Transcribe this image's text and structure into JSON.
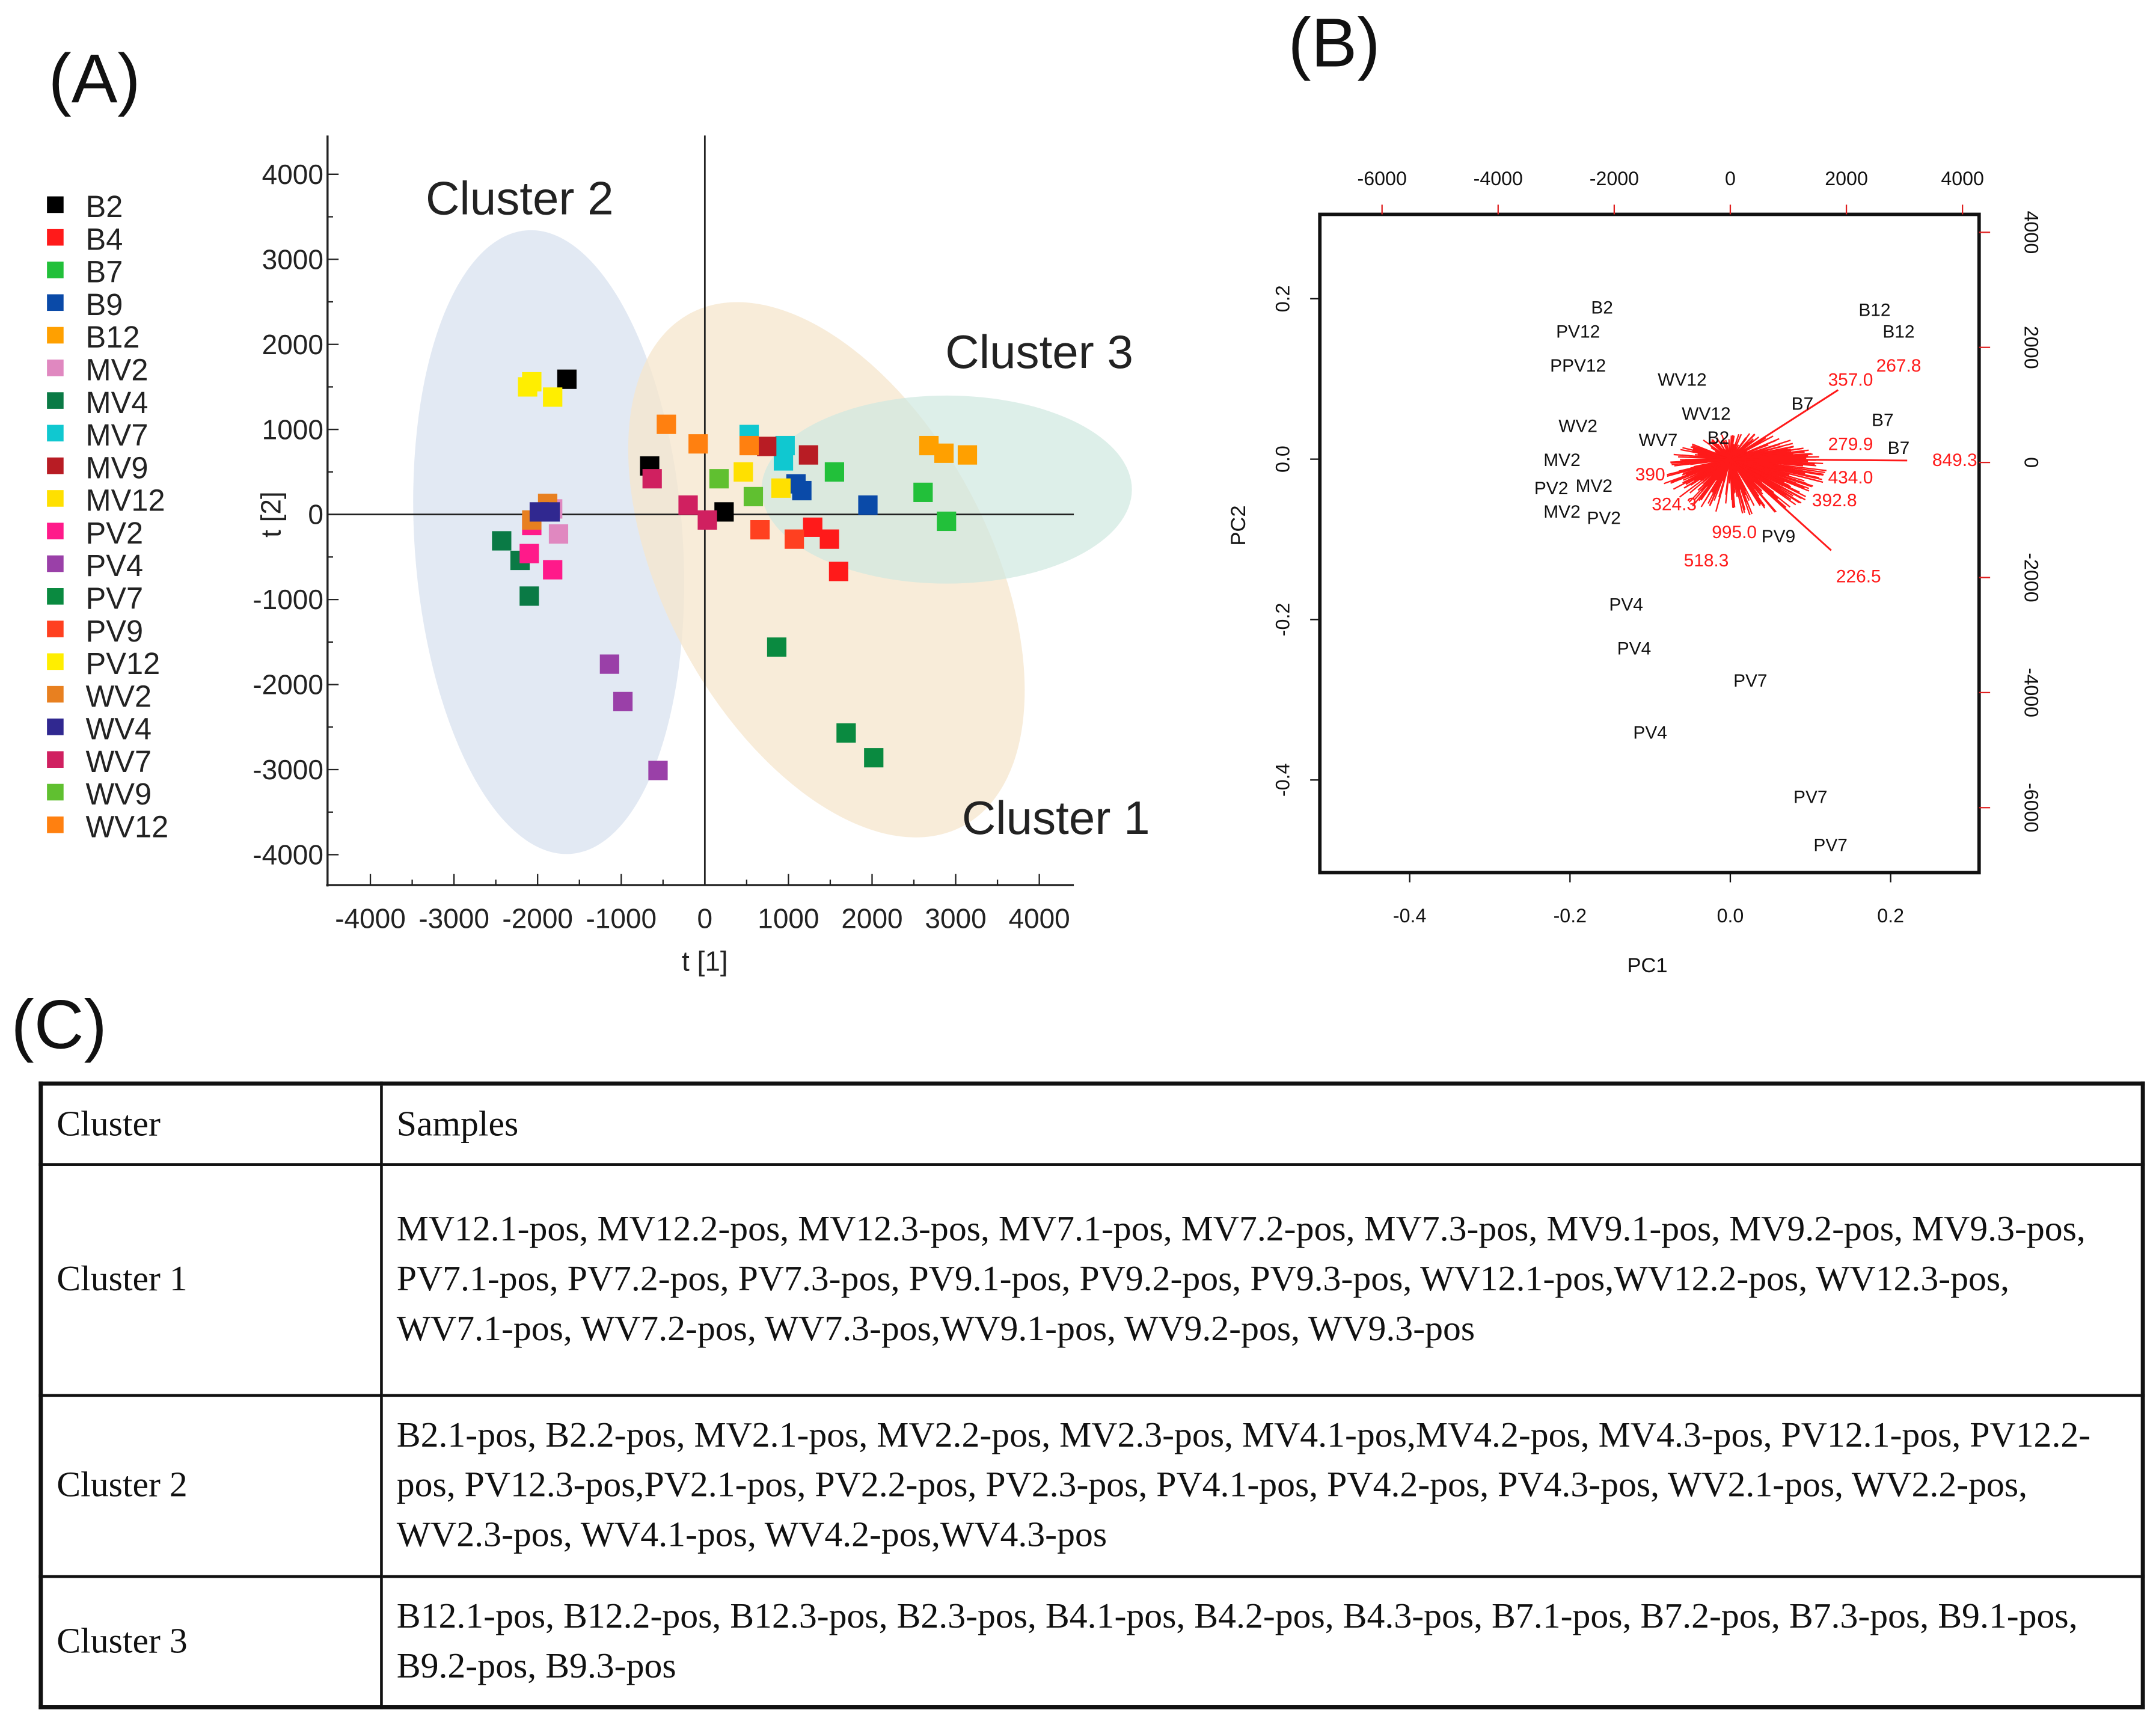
{
  "panels": {
    "a": "(A)",
    "b": "(B)",
    "c": "(C)"
  },
  "chart_data": [
    {
      "type": "scatter",
      "title": "",
      "xlabel": "t [1]",
      "ylabel": "t [2]",
      "xlim": [
        -4500,
        4500
      ],
      "ylim": [
        -4500,
        4500
      ],
      "xticks": [
        "-4000",
        "-3000",
        "-2000",
        "-1000",
        "0",
        "1000",
        "2000",
        "3000",
        "4000"
      ],
      "yticks": [
        "4000",
        "3000",
        "2000",
        "1000",
        "0",
        "-1000",
        "-2000",
        "-3000",
        "-4000"
      ],
      "legend_position": "left",
      "cluster_labels": [
        "Cluster 2",
        "Cluster 3",
        "Cluster 1"
      ],
      "series": [
        {
          "name": "B2",
          "color": "#000000",
          "points": [
            [
              -1650,
              1590
            ],
            [
              -660,
              570
            ],
            [
              230,
              30
            ]
          ]
        },
        {
          "name": "B4",
          "color": "#ff1a1a",
          "points": [
            [
              1290,
              -150
            ],
            [
              1490,
              -290
            ],
            [
              1600,
              -670
            ]
          ]
        },
        {
          "name": "B7",
          "color": "#22c03a",
          "points": [
            [
              1550,
              500
            ],
            [
              2610,
              260
            ],
            [
              2890,
              -80
            ]
          ]
        },
        {
          "name": "B9",
          "color": "#0a4aa8",
          "points": [
            [
              1090,
              360
            ],
            [
              1160,
              280
            ],
            [
              1950,
              110
            ]
          ]
        },
        {
          "name": "B12",
          "color": "#ffa000",
          "points": [
            [
              2680,
              810
            ],
            [
              2860,
              720
            ],
            [
              3140,
              700
            ]
          ]
        },
        {
          "name": "MV2",
          "color": "#e088c0",
          "points": [
            [
              -1750,
              -230
            ],
            [
              -1820,
              65
            ]
          ]
        },
        {
          "name": "MV4",
          "color": "#0a7a45",
          "points": [
            [
              -2430,
              -310
            ],
            [
              -2210,
              -540
            ],
            [
              -2100,
              -960
            ]
          ]
        },
        {
          "name": "MV7",
          "color": "#10c8d0",
          "points": [
            [
              530,
              940
            ],
            [
              960,
              810
            ],
            [
              940,
              630
            ]
          ]
        },
        {
          "name": "MV9",
          "color": "#b81c24",
          "points": [
            [
              740,
              800
            ],
            [
              1240,
              700
            ]
          ]
        },
        {
          "name": "MV12",
          "color": "#ffe000",
          "points": [
            [
              460,
              500
            ],
            [
              910,
              310
            ]
          ]
        },
        {
          "name": "PV2",
          "color": "#ff1a8a",
          "points": [
            [
              -2100,
              -460
            ],
            [
              -1820,
              -650
            ],
            [
              -2070,
              -130
            ]
          ]
        },
        {
          "name": "PV4",
          "color": "#9a40a8",
          "points": [
            [
              -1140,
              -1760
            ],
            [
              -980,
              -2200
            ],
            [
              -560,
              -3010
            ]
          ]
        },
        {
          "name": "PV7",
          "color": "#0a8a40",
          "points": [
            [
              860,
              -1560
            ],
            [
              1690,
              -2570
            ],
            [
              2020,
              -2860
            ]
          ]
        },
        {
          "name": "PV9",
          "color": "#ff4020",
          "points": [
            [
              660,
              -180
            ],
            [
              1070,
              -290
            ]
          ]
        },
        {
          "name": "PV12",
          "color": "#ffee00",
          "points": [
            [
              -2070,
              1560
            ],
            [
              -2120,
              1500
            ],
            [
              -1820,
              1380
            ]
          ]
        },
        {
          "name": "WV2",
          "color": "#e88020",
          "points": [
            [
              -2070,
              -65
            ],
            [
              -1880,
              130
            ]
          ]
        },
        {
          "name": "WV4",
          "color": "#302890",
          "points": [
            [
              -1980,
              30
            ],
            [
              -1850,
              30
            ]
          ]
        },
        {
          "name": "WV7",
          "color": "#d02060",
          "points": [
            [
              -630,
              420
            ],
            [
              -200,
              110
            ],
            [
              30,
              -65
            ]
          ]
        },
        {
          "name": "WV9",
          "color": "#60c030",
          "points": [
            [
              170,
              420
            ],
            [
              580,
              210
            ]
          ]
        },
        {
          "name": "WV12",
          "color": "#ff8010",
          "points": [
            [
              -460,
              1060
            ],
            [
              -80,
              830
            ],
            [
              530,
              810
            ]
          ]
        }
      ]
    },
    {
      "type": "scatter",
      "subtype": "biplot",
      "xlabel": "PC1",
      "ylabel": "PC2",
      "xlim": [
        -0.52,
        0.31
      ],
      "ylim": [
        -0.52,
        0.31
      ],
      "xticks": [
        "-0.4",
        "-0.2",
        "0.0",
        "0.2"
      ],
      "yticks": [
        "0.2",
        "0.0",
        "-0.2",
        "-0.4"
      ],
      "top_ticks": [
        "-6000",
        "-4000",
        "-2000",
        "0",
        "2000",
        "4000"
      ],
      "right_ticks": [
        "4000",
        "2000",
        "0",
        "-2000",
        "-4000",
        "-6000"
      ],
      "sample_labels": [
        {
          "t": "B2",
          "pc1": -0.16,
          "pc2": 0.19
        },
        {
          "t": "PV12",
          "pc1": -0.19,
          "pc2": 0.16
        },
        {
          "t": "PPV12",
          "pc1": -0.19,
          "pc2": 0.14
        },
        {
          "t": "WV12",
          "pc1": -0.06,
          "pc2": 0.1
        },
        {
          "t": "WV12",
          "pc1": -0.03,
          "pc2": 0.08
        },
        {
          "t": "B2",
          "pc1": -0.015,
          "pc2": 0.05
        },
        {
          "t": "B7",
          "pc1": 0.09,
          "pc2": 0.07
        },
        {
          "t": "B7",
          "pc1": 0.19,
          "pc2": 0.05
        },
        {
          "t": "B7",
          "pc1": 0.21,
          "pc2": 0.015
        },
        {
          "t": "B12",
          "pc1": 0.21,
          "pc2": 0.16
        },
        {
          "t": "B12",
          "pc1": 0.18,
          "pc2": 0.165
        },
        {
          "t": "WV7",
          "pc1": -0.09,
          "pc2": 0.025
        },
        {
          "t": "MV2",
          "pc1": -0.21,
          "pc2": 0.0
        },
        {
          "t": "MV2",
          "pc1": -0.17,
          "pc2": -0.01
        },
        {
          "t": "MV2",
          "pc1": -0.21,
          "pc2": -0.02
        },
        {
          "t": "PV2",
          "pc1": -0.19,
          "pc2": -0.035
        },
        {
          "t": "PV2",
          "pc1": -0.18,
          "pc2": -0.05
        },
        {
          "t": "WV2",
          "pc1": -0.19,
          "pc2": 0.02
        },
        {
          "t": "PV9",
          "pc1": 0.06,
          "pc2": -0.095
        },
        {
          "t": "PV4",
          "pc1": -0.13,
          "pc2": -0.18
        },
        {
          "t": "PV4",
          "pc1": -0.12,
          "pc2": -0.235
        },
        {
          "t": "PV7",
          "pc1": 0.025,
          "pc2": -0.275
        },
        {
          "t": "PV4",
          "pc1": -0.1,
          "pc2": -0.34
        },
        {
          "t": "PV7",
          "pc1": 0.1,
          "pc2": -0.42
        },
        {
          "t": "PV7",
          "pc1": 0.125,
          "pc2": -0.48
        }
      ],
      "loading_labels": [
        {
          "t": "357.0",
          "pc1": 0.15,
          "pc2": 0.1
        },
        {
          "t": "267.8",
          "pc1": 0.21,
          "pc2": 0.14
        },
        {
          "t": "849.3",
          "pc1": 0.28,
          "pc2": 0.0
        },
        {
          "t": "226.5",
          "pc1": 0.16,
          "pc2": -0.145
        },
        {
          "t": "518.3",
          "pc1": -0.03,
          "pc2": -0.125
        },
        {
          "t": "279.9",
          "pc1": 0.15,
          "pc2": 0.02
        },
        {
          "t": "434.0",
          "pc1": 0.15,
          "pc2": 0.045
        },
        {
          "t": "324.3",
          "pc1": -0.07,
          "pc2": -0.055
        },
        {
          "t": "390",
          "pc1": -0.1,
          "pc2": -0.04
        },
        {
          "t": "995.0",
          "pc1": 0.005,
          "pc2": -0.09
        },
        {
          "t": "392.8",
          "pc1": 0.13,
          "pc2": -0.05
        }
      ]
    }
  ],
  "table": {
    "header": [
      "Cluster",
      "Samples"
    ],
    "rows": [
      [
        "Cluster 1",
        "MV12.1-pos, MV12.2-pos, MV12.3-pos, MV7.1-pos, MV7.2-pos, MV7.3-pos, MV9.1-pos, MV9.2-pos, MV9.3-pos, PV7.1-pos, PV7.2-pos, PV7.3-pos, PV9.1-pos, PV9.2-pos, PV9.3-pos, WV12.1-pos,WV12.2-pos, WV12.3-pos, WV7.1-pos, WV7.2-pos, WV7.3-pos,WV9.1-pos, WV9.2-pos, WV9.3-pos"
      ],
      [
        "Cluster 2",
        "B2.1-pos, B2.2-pos, MV2.1-pos, MV2.2-pos, MV2.3-pos, MV4.1-pos,MV4.2-pos, MV4.3-pos, PV12.1-pos, PV12.2-pos, PV12.3-pos,PV2.1-pos, PV2.2-pos, PV2.3-pos, PV4.1-pos, PV4.2-pos, PV4.3-pos, WV2.1-pos, WV2.2-pos, WV2.3-pos, WV4.1-pos, WV4.2-pos,WV4.3-pos"
      ],
      [
        "Cluster 3",
        "B12.1-pos, B12.2-pos, B12.3-pos, B2.3-pos, B4.1-pos, B4.2-pos, B4.3-pos, B7.1-pos, B7.2-pos, B7.3-pos, B9.1-pos, B9.2-pos, B9.3-pos"
      ]
    ]
  }
}
